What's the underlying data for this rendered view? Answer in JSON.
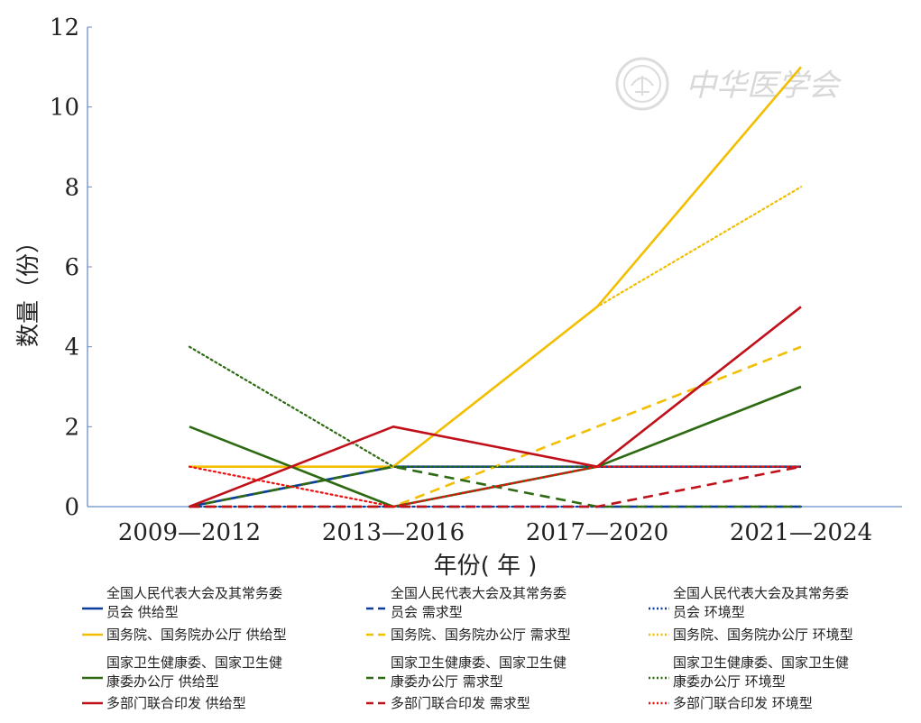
{
  "watermark": {
    "text": "中华医学会"
  },
  "chart_data": {
    "type": "line",
    "xlabel": "年份( 年 )",
    "ylabel": "数量（份）",
    "categories": [
      "2009—2012",
      "2013—2016",
      "2017—2020",
      "2021—2024"
    ],
    "ylim": [
      0,
      12
    ],
    "yticks": [
      0,
      2,
      4,
      6,
      8,
      10,
      12
    ],
    "grid": false,
    "legend_position": "bottom",
    "series": [
      {
        "name": "全国人民代表大会及其常务委员会 供给型",
        "label_lines": [
          "全国人民代表大会及其常务委",
          "员会 供给型"
        ],
        "color": "#0b3d9c",
        "dash": "solid",
        "values": [
          0,
          1,
          1,
          1
        ]
      },
      {
        "name": "全国人民代表大会及其常务委员会 需求型",
        "label_lines": [
          "全国人民代表大会及其常务委",
          "员会 需求型"
        ],
        "color": "#0b3d9c",
        "dash": "dashed",
        "values": [
          0,
          0,
          0,
          0
        ]
      },
      {
        "name": "全国人民代表大会及其常务委员会 环境型",
        "label_lines": [
          "全国人民代表大会及其常务委",
          "员会 环境型"
        ],
        "color": "#0b3d9c",
        "dash": "dotted",
        "values": [
          0,
          0,
          0,
          0
        ]
      },
      {
        "name": "国务院、国务院办公厅 供给型",
        "label_lines": [
          "国务院、国务院办公厅 供给型"
        ],
        "color": "#f2be00",
        "dash": "solid",
        "values": [
          1,
          1,
          5,
          11
        ]
      },
      {
        "name": "国务院、国务院办公厅 需求型",
        "label_lines": [
          "国务院、国务院办公厅 需求型"
        ],
        "color": "#f2be00",
        "dash": "dashed",
        "values": [
          0,
          0,
          2,
          4
        ]
      },
      {
        "name": "国务院、国务院办公厅 环境型",
        "label_lines": [
          "国务院、国务院办公厅 环境型"
        ],
        "color": "#f2be00",
        "dash": "dotted",
        "values": [
          1,
          1,
          5,
          8
        ]
      },
      {
        "name": "国家卫生健康委、国家卫生健康委办公厅 供给型",
        "label_lines": [
          "国家卫生健康委、国家卫生健",
          "康委办公厅 供给型"
        ],
        "color": "#2d6a12",
        "dash": "solid",
        "values": [
          2,
          0,
          1,
          3
        ]
      },
      {
        "name": "国家卫生健康委、国家卫生健康委办公厅 需求型",
        "label_lines": [
          "国家卫生健康委、国家卫生健",
          "康委办公厅 需求型"
        ],
        "color": "#2d6a12",
        "dash": "dashed",
        "values": [
          0,
          1,
          0,
          0
        ]
      },
      {
        "name": "国家卫生健康委、国家卫生健康委办公厅 环境型",
        "label_lines": [
          "国家卫生健康委、国家卫生健",
          "康委办公厅 环境型"
        ],
        "color": "#2d6a12",
        "dash": "dotted",
        "values": [
          4,
          1,
          1,
          1
        ]
      },
      {
        "name": "多部门联合印发 供给型",
        "label_lines": [
          "多部门联合印发 供给型"
        ],
        "color": "#c0101a",
        "dash": "solid",
        "values": [
          0,
          2,
          1,
          5
        ]
      },
      {
        "name": "多部门联合印发 需求型",
        "label_lines": [
          "多部门联合印发 需求型"
        ],
        "color": "#c0101a",
        "dash": "dashed",
        "values": [
          0,
          0,
          0,
          1
        ]
      },
      {
        "name": "多部门联合印发 环境型",
        "label_lines": [
          "多部门联合印发 环境型"
        ],
        "color": "#ee1010",
        "dash": "dotted",
        "values": [
          1,
          0,
          1,
          1
        ]
      }
    ]
  }
}
